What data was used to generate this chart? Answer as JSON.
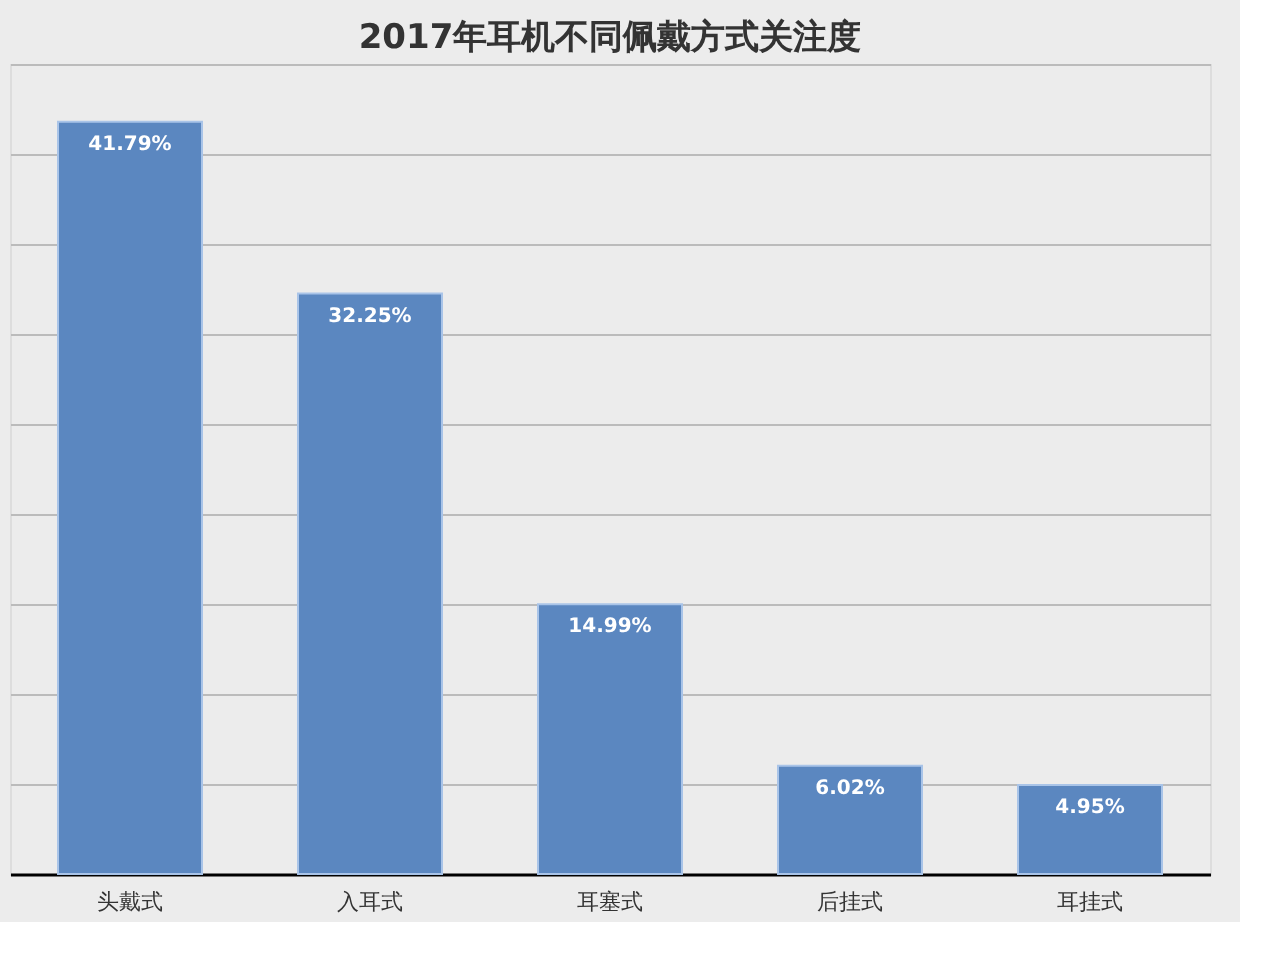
{
  "chart_data": {
    "type": "bar",
    "title": "2017年耳机不同佩戴方式关注度",
    "categories": [
      "头戴式",
      "入耳式",
      "耳塞式",
      "后挂式",
      "耳挂式"
    ],
    "values": [
      41.79,
      32.25,
      14.99,
      6.02,
      4.95
    ],
    "value_labels": [
      "41.79%",
      "32.25%",
      "14.99%",
      "6.02%",
      "4.95%"
    ],
    "color": "#5b87c0",
    "ylim": [
      0,
      45
    ],
    "yticks": [
      {
        "value": 0,
        "label": null
      },
      {
        "value": 5,
        "label": null
      },
      {
        "value": 10,
        "label": null
      },
      {
        "value": 15,
        "label": null
      },
      {
        "value": 20,
        "label": null
      },
      {
        "value": 25,
        "label": null
      },
      {
        "value": 30,
        "label": null
      },
      {
        "value": 35,
        "label": null
      },
      {
        "value": 40,
        "label": null
      },
      {
        "value": 45,
        "label": null
      }
    ],
    "tick_labels": "x",
    "grid": "y"
  }
}
